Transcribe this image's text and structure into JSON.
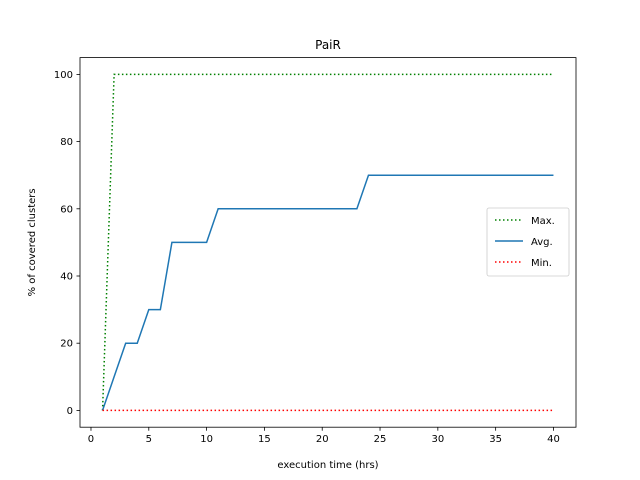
{
  "chart_data": {
    "type": "line",
    "title": "PaiR",
    "xlabel": "execution time (hrs)",
    "ylabel": "% of covered clusters",
    "xlim": [
      -0.95,
      41.95
    ],
    "ylim": [
      -5,
      105
    ],
    "xticks": [
      0,
      5,
      10,
      15,
      20,
      25,
      30,
      35,
      40
    ],
    "yticks": [
      0,
      20,
      40,
      60,
      80,
      100
    ],
    "grid": false,
    "legend_position": "center-right",
    "series": [
      {
        "name": "Max.",
        "style": "dotted",
        "color": "#008000",
        "x": [
          1,
          2,
          40
        ],
        "y": [
          0,
          100,
          100
        ]
      },
      {
        "name": "Avg.",
        "style": "solid",
        "color": "#1f77b4",
        "x": [
          1,
          2,
          3,
          4,
          5,
          6,
          7,
          8,
          9,
          10,
          11,
          12,
          23,
          24,
          40
        ],
        "y": [
          0,
          10,
          20,
          20,
          30,
          30,
          50,
          50,
          50,
          50,
          60,
          60,
          60,
          70,
          70
        ]
      },
      {
        "name": "Min.",
        "style": "dotted",
        "color": "#ff0000",
        "x": [
          1,
          40
        ],
        "y": [
          0,
          0
        ]
      }
    ]
  }
}
